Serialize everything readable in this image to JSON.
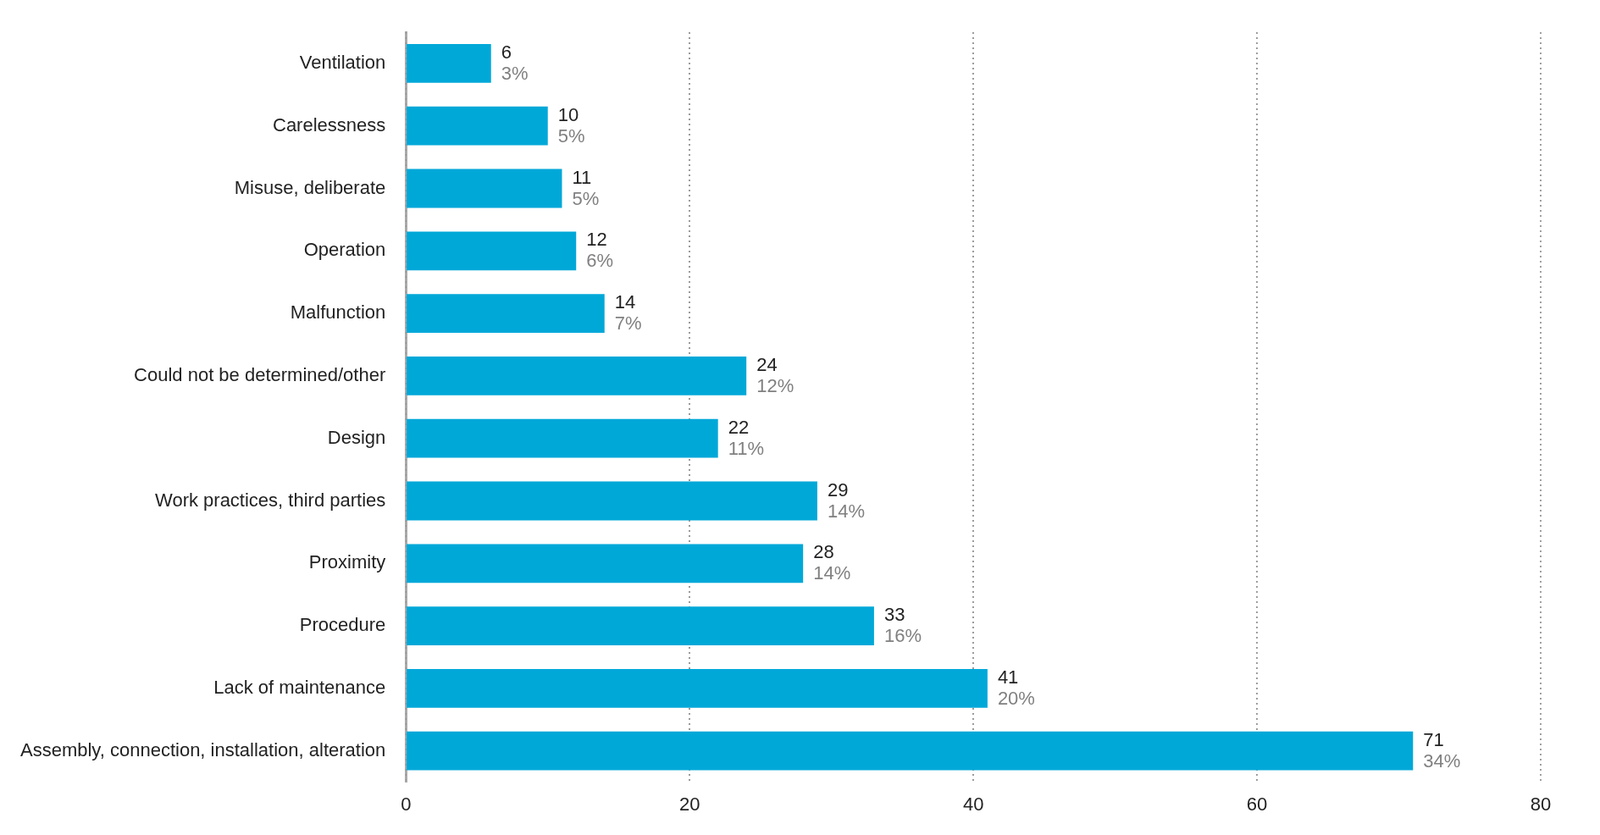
{
  "chart_data": {
    "type": "bar",
    "orientation": "horizontal",
    "categories": [
      "Ventilation",
      "Carelessness",
      "Misuse, deliberate",
      "Operation",
      "Malfunction",
      "Could not be determined/other",
      "Design",
      "Work practices, third parties",
      "Proximity",
      "Procedure",
      "Lack of maintenance",
      "Assembly, connection, installation, alteration"
    ],
    "values": [
      6,
      10,
      11,
      12,
      14,
      24,
      22,
      29,
      28,
      33,
      41,
      71
    ],
    "share_labels": [
      "3%",
      "5%",
      "5%",
      "6%",
      "7%",
      "12%",
      "11%",
      "14%",
      "14%",
      "16%",
      "20%",
      "34%"
    ],
    "color": "#00a8d8",
    "xlim": [
      0,
      80
    ],
    "xticks": [
      0,
      20,
      40,
      60,
      80
    ],
    "grid": true,
    "data_labels": true
  }
}
